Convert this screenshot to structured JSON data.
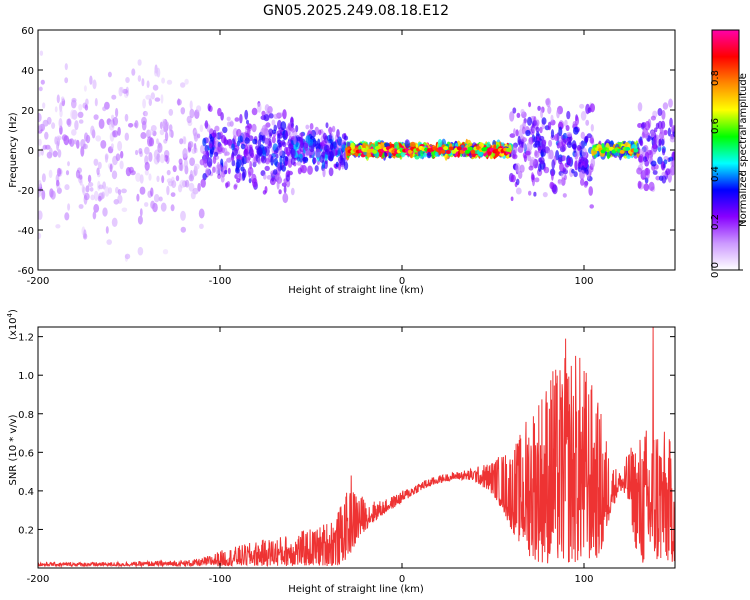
{
  "title": "GN05.2025.249.08.18.E12",
  "chart_data": [
    {
      "type": "heatmap",
      "name": "spectrogram",
      "xlabel": "Height of straight line (km)",
      "ylabel": "Frequency (Hz)",
      "xlim": [
        -200,
        150
      ],
      "ylim": [
        -60,
        60
      ],
      "xticks": [
        -200,
        -100,
        0,
        100
      ],
      "yticks": [
        -60,
        -40,
        -20,
        0,
        20,
        40,
        60
      ],
      "xtick_labels": [
        "-200",
        "-100",
        "0",
        "100"
      ],
      "ytick_labels": [
        "-60",
        "-40",
        "-20",
        "0",
        "20",
        "40",
        "60"
      ],
      "colorbar": {
        "label": "Normalized spectral amplitude",
        "range": [
          0,
          1
        ],
        "ticks": [
          0.0,
          0.2,
          0.4,
          0.6,
          0.8
        ],
        "tick_labels": [
          "0.0",
          "0.2",
          "0.4",
          "0.6",
          "0.8"
        ],
        "colors": [
          "#ffffff",
          "#cc99ff",
          "#8800ff",
          "#0000ff",
          "#00ffff",
          "#00ff00",
          "#ffff00",
          "#ff8800",
          "#ff0000",
          "#ff00aa"
        ]
      },
      "regions": [
        {
          "x": [
            -200,
            -110
          ],
          "freq_halfwidth": 60,
          "level": 0.12,
          "density": 0.6
        },
        {
          "x": [
            -110,
            -60
          ],
          "freq_halfwidth": 22,
          "level": 0.25,
          "density": 0.7
        },
        {
          "x": [
            -60,
            -30
          ],
          "freq_halfwidth": 12,
          "level": 0.3,
          "density": 0.7
        },
        {
          "x": [
            -30,
            60
          ],
          "freq_halfwidth": 3,
          "level": 0.75,
          "density": 0.9
        },
        {
          "x": [
            60,
            105
          ],
          "freq_halfwidth": 25,
          "level": 0.25,
          "density": 0.65
        },
        {
          "x": [
            105,
            130
          ],
          "freq_halfwidth": 3,
          "level": 0.6,
          "density": 0.9
        },
        {
          "x": [
            130,
            150
          ],
          "freq_halfwidth": 25,
          "level": 0.25,
          "density": 0.65
        }
      ]
    },
    {
      "type": "line",
      "name": "snr",
      "xlabel": "Height of straight line (km)",
      "ylabel": "SNR (10 * v/v)",
      "ylabel_multiplier": "(x10^4)",
      "xlim": [
        -200,
        150
      ],
      "ylim": [
        0,
        1.25
      ],
      "xticks": [
        -200,
        -100,
        0,
        100
      ],
      "yticks": [
        0.2,
        0.4,
        0.6,
        0.8,
        1.0,
        1.2
      ],
      "xtick_labels": [
        "-200",
        "-100",
        "0",
        "100"
      ],
      "ytick_labels": [
        "0.2",
        "0.4",
        "0.6",
        "0.8",
        "1.0",
        "1.2"
      ],
      "color": "#ee3333",
      "envelope": {
        "x": [
          -200,
          -160,
          -120,
          -110,
          -100,
          -80,
          -60,
          -45,
          -35,
          -30,
          -25,
          -20,
          -10,
          0,
          10,
          20,
          30,
          40,
          50,
          55,
          60,
          65,
          70,
          75,
          80,
          85,
          90,
          95,
          100,
          105,
          110,
          115,
          120,
          125,
          130,
          135,
          140,
          145,
          150
        ],
        "lower": [
          0.01,
          0.01,
          0.01,
          0.01,
          0.01,
          0.01,
          0.01,
          0.01,
          0.01,
          0.05,
          0.12,
          0.2,
          0.28,
          0.34,
          0.4,
          0.44,
          0.46,
          0.45,
          0.38,
          0.3,
          0.2,
          0.12,
          0.06,
          0.03,
          0.02,
          0.02,
          0.02,
          0.02,
          0.02,
          0.04,
          0.06,
          0.3,
          0.4,
          0.3,
          0.01,
          0.01,
          0.02,
          0.02,
          0.03
        ],
        "upper": [
          0.03,
          0.03,
          0.04,
          0.05,
          0.09,
          0.14,
          0.18,
          0.22,
          0.3,
          0.4,
          0.42,
          0.35,
          0.35,
          0.4,
          0.45,
          0.48,
          0.5,
          0.52,
          0.56,
          0.6,
          0.62,
          0.7,
          0.85,
          0.92,
          1.0,
          1.05,
          1.1,
          1.15,
          1.08,
          0.95,
          0.8,
          0.55,
          0.5,
          0.62,
          0.7,
          0.75,
          0.8,
          0.7,
          0.65
        ]
      },
      "peaks": [
        {
          "x": 138,
          "y": 1.25
        },
        {
          "x": 90,
          "y": 1.19
        },
        {
          "x": 83,
          "y": 1.02
        },
        {
          "x": -28,
          "y": 0.48
        }
      ]
    }
  ]
}
